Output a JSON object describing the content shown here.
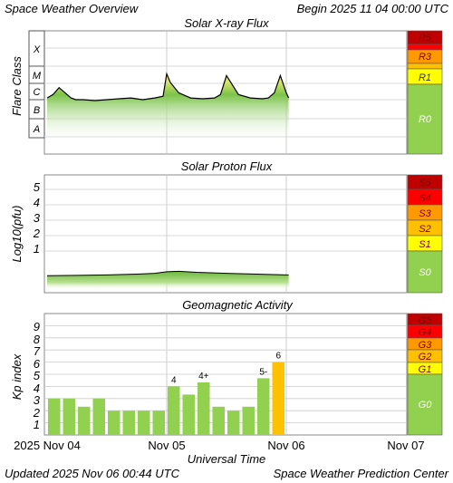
{
  "header": {
    "title": "Space Weather Overview",
    "begin": "Begin 2025 11 04 00:00 UTC"
  },
  "footer": {
    "updated": "Updated 2025 Nov 06 00:44 UTC",
    "credit": "Space Weather Prediction Center"
  },
  "xaxis": {
    "label": "Universal Time",
    "ticks": [
      "2025 Nov 04",
      "Nov 05",
      "Nov 06",
      "Nov 07"
    ]
  },
  "colors": {
    "green": "#92d050",
    "yellow": "#ffff00",
    "gold": "#ffc000",
    "orange": "#ff9900",
    "red_orange": "#ff3300",
    "red": "#ff0000",
    "dark_red": "#c00000",
    "grid": "#cccccc",
    "curve_fill_top": "#f6e25a"
  },
  "chart_data": [
    {
      "type": "area",
      "title": "Solar X-ray Flux",
      "ylabel": "Flare Class",
      "y_tick_labels": [
        "A",
        "B",
        "C",
        "M",
        "X"
      ],
      "x_days": [
        0,
        0.05,
        0.1,
        0.15,
        0.2,
        0.24,
        0.3,
        0.4,
        0.5,
        0.6,
        0.7,
        0.8,
        0.9,
        0.97,
        1.0,
        1.03,
        1.1,
        1.2,
        1.3,
        1.4,
        1.45,
        1.5,
        1.6,
        1.7,
        1.8,
        1.85,
        1.9,
        1.95,
        2.0,
        2.02
      ],
      "flux_log": [
        -5.9,
        -5.7,
        -5.3,
        -5.6,
        -5.9,
        -6.0,
        -6.0,
        -6.05,
        -6.0,
        -5.95,
        -5.9,
        -6.0,
        -5.9,
        -5.8,
        -4.5,
        -5.0,
        -5.6,
        -5.9,
        -5.95,
        -5.9,
        -5.7,
        -4.6,
        -5.7,
        -5.9,
        -5.95,
        -5.9,
        -5.6,
        -4.6,
        -5.6,
        -5.9
      ],
      "scale_labels": [
        "R5",
        "R3",
        "R1",
        "R0"
      ]
    },
    {
      "type": "area",
      "title": "Solar Proton Flux",
      "ylabel": "Log10(pfu)",
      "y_tick_labels": [
        "1",
        "2",
        "3",
        "4",
        "5"
      ],
      "x_days": [
        0,
        0.25,
        0.5,
        0.75,
        0.9,
        1.0,
        1.1,
        1.25,
        1.5,
        1.75,
        2.0,
        2.02
      ],
      "values": [
        -0.6,
        -0.58,
        -0.55,
        -0.5,
        -0.45,
        -0.35,
        -0.32,
        -0.38,
        -0.45,
        -0.5,
        -0.55,
        -0.55
      ],
      "scale_labels": [
        "S5",
        "S4",
        "S3",
        "S2",
        "S1",
        "S0"
      ]
    },
    {
      "type": "bar",
      "title": "Geomagnetic Activity",
      "ylabel": "Kp index",
      "y_tick_labels": [
        "1",
        "2",
        "3",
        "4",
        "5",
        "6",
        "7",
        "8",
        "9"
      ],
      "x_days_start": [
        0,
        0.125,
        0.25,
        0.375,
        0.5,
        0.625,
        0.75,
        0.875,
        1.0,
        1.125,
        1.25,
        1.375,
        1.5,
        1.625,
        1.75,
        1.875
      ],
      "values": [
        3.0,
        3.0,
        2.33,
        3.0,
        2.0,
        2.0,
        2.0,
        2.0,
        4.0,
        3.33,
        4.33,
        2.33,
        2.0,
        2.33,
        4.67,
        6.0
      ],
      "bar_labels": [
        "",
        "",
        "",
        "",
        "",
        "",
        "",
        "",
        "4",
        "",
        "4+",
        "",
        "",
        "",
        "5-",
        "6"
      ],
      "bar_colors": [
        "#92d050",
        "#92d050",
        "#92d050",
        "#92d050",
        "#92d050",
        "#92d050",
        "#92d050",
        "#92d050",
        "#92d050",
        "#92d050",
        "#92d050",
        "#92d050",
        "#92d050",
        "#92d050",
        "#92d050",
        "#ffc000"
      ],
      "scale_labels": [
        "G5",
        "G4",
        "G3",
        "G2",
        "G1",
        "G0"
      ]
    }
  ]
}
